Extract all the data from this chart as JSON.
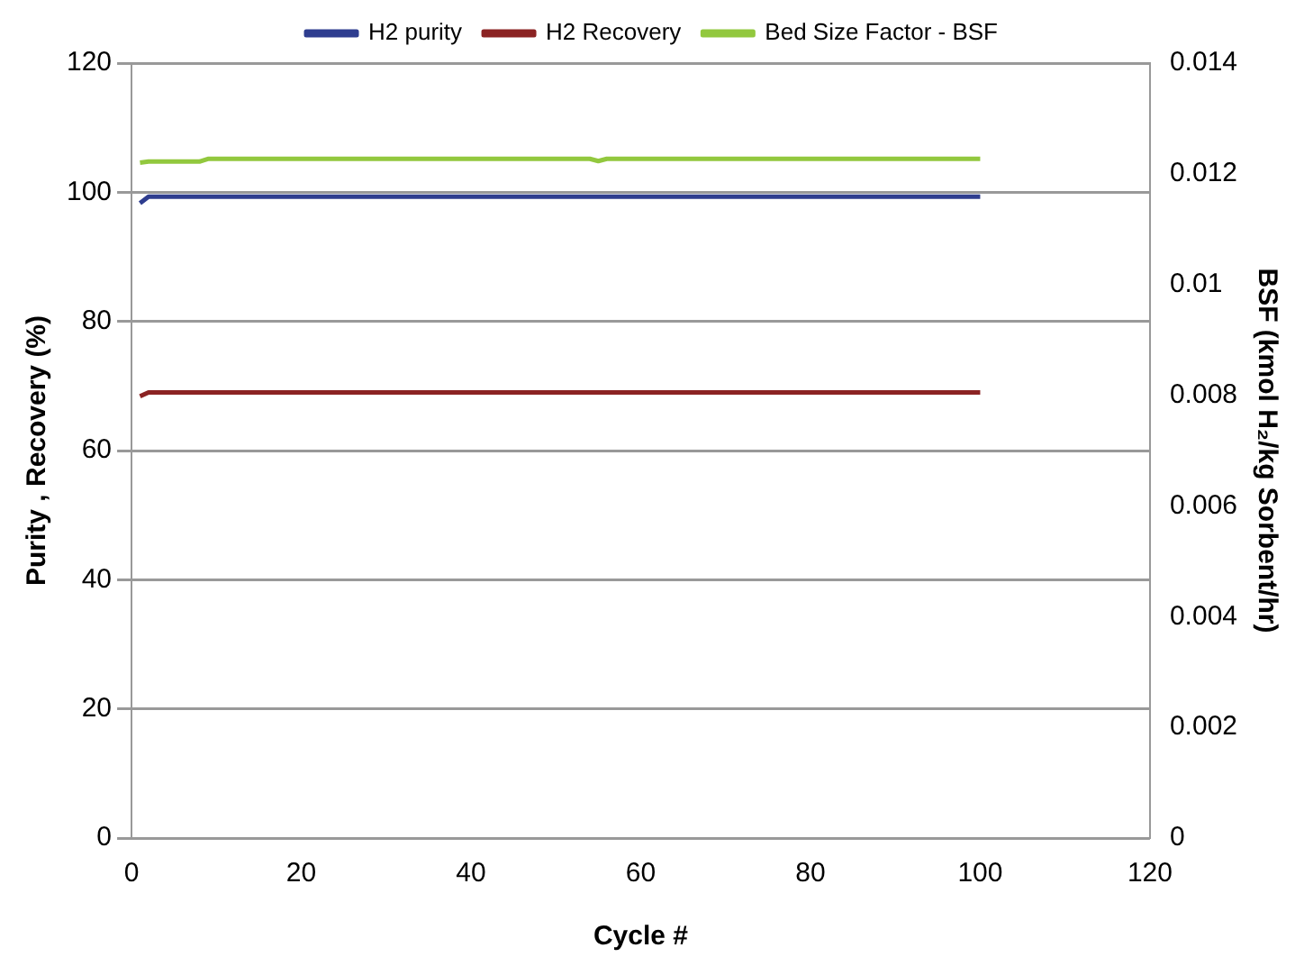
{
  "chart_data": {
    "type": "line",
    "xlabel": "Cycle #",
    "ylabel": "Purity , Recovery (%)",
    "y2label": "BSF (kmol H₂/kg Sorbent/hr)",
    "xlim": [
      0,
      120
    ],
    "xticks": [
      0,
      20,
      40,
      60,
      80,
      100,
      120
    ],
    "ylim": [
      0,
      120
    ],
    "yticks": [
      0,
      20,
      40,
      60,
      80,
      100,
      120
    ],
    "y2lim": [
      0,
      0.014
    ],
    "y2ticks": [
      0,
      0.002,
      0.004,
      0.006,
      0.008,
      0.01,
      0.012,
      0.014
    ],
    "grid": "y",
    "legend": "top",
    "marker": "none",
    "line_style": "solid",
    "series": [
      {
        "name": "H2 purity",
        "color": "#2e3d8f",
        "x": [
          1,
          2,
          100
        ],
        "values": [
          98.3,
          99.3,
          99.3
        ]
      },
      {
        "name": "H2 Recovery",
        "color": "#8b2323",
        "x": [
          1,
          2,
          100
        ],
        "values": [
          68.4,
          69,
          69
        ]
      },
      {
        "name": "Bed Size Factor - BSF",
        "color": "#92c83e",
        "axis": "y2",
        "x": [
          1,
          2,
          8,
          9,
          54,
          55,
          56,
          100
        ],
        "values": [
          0.0122,
          0.01222,
          0.01222,
          0.01227,
          0.01227,
          0.01223,
          0.01227,
          0.01227
        ]
      }
    ]
  }
}
